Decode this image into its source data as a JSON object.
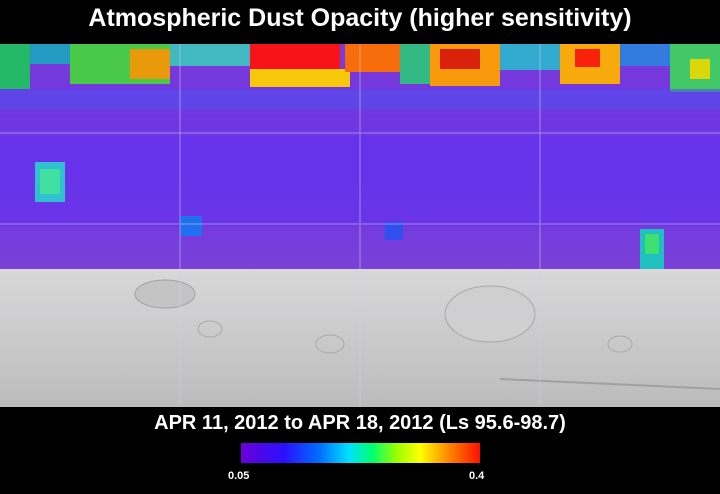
{
  "title": "Atmospheric Dust Opacity (higher sensitivity)",
  "date_range": "APR 11, 2012 to APR 18, 2012 (Ls 95.6-98.7)",
  "colorbar": {
    "min_label": "0.05",
    "max_label": "0.4",
    "colors": [
      "#6a00d8",
      "#2a10ff",
      "#0070ff",
      "#00e0ff",
      "#00ff70",
      "#9aff00",
      "#ffff00",
      "#ff9000",
      "#ff1000"
    ]
  }
}
